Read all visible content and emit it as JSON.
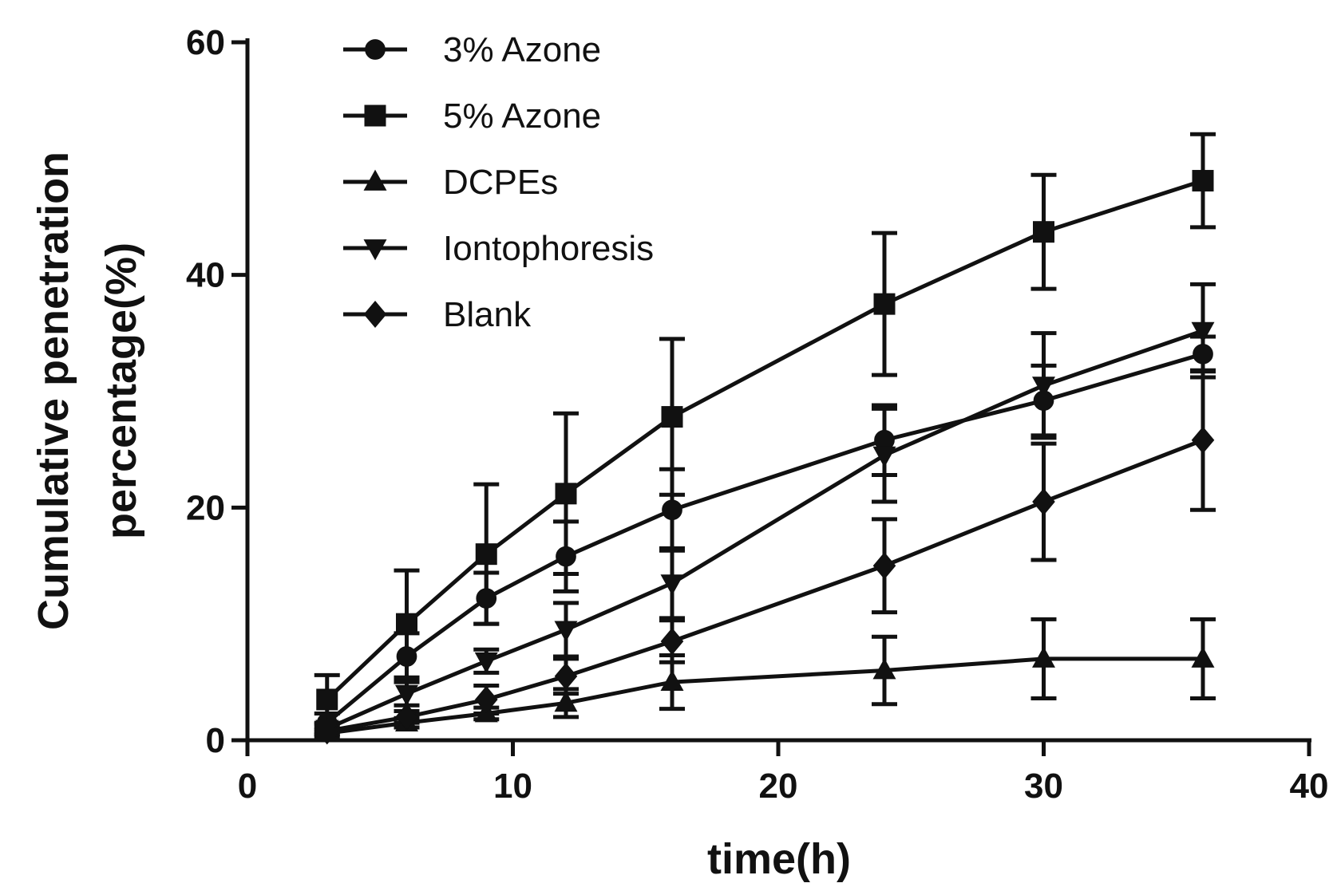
{
  "chart_data": {
    "type": "line",
    "title": "",
    "xlabel": "time(h)",
    "ylabel_lines": [
      "Cumulative penetration",
      "percentage(%)"
    ],
    "xlim": [
      0,
      40
    ],
    "ylim": [
      0,
      60
    ],
    "xticks": [
      0,
      10,
      20,
      30,
      40
    ],
    "yticks": [
      0,
      20,
      40,
      60
    ],
    "grid": false,
    "legend_position": "top-left",
    "x": [
      3,
      6,
      9,
      12,
      16,
      24,
      30,
      36
    ],
    "series": [
      {
        "name": "3% Azone",
        "marker": "circle",
        "values": [
          1.5,
          7.2,
          12.2,
          15.8,
          19.8,
          25.8,
          29.2,
          33.2
        ],
        "errors": [
          0.8,
          2.0,
          2.2,
          3.0,
          3.5,
          3.0,
          3.0,
          1.5
        ]
      },
      {
        "name": "5% Azone",
        "marker": "square",
        "values": [
          3.5,
          10.0,
          16.0,
          21.2,
          27.8,
          37.5,
          43.7,
          48.1
        ],
        "errors": [
          2.1,
          4.6,
          6.0,
          6.9,
          6.7,
          6.1,
          4.9,
          4.0
        ]
      },
      {
        "name": "DCPEs",
        "marker": "triangle-up",
        "values": [
          0.6,
          1.5,
          2.3,
          3.2,
          5.0,
          6.0,
          7.0,
          7.0
        ],
        "errors": [
          0.3,
          0.4,
          0.5,
          1.2,
          2.3,
          2.9,
          3.4,
          3.4
        ]
      },
      {
        "name": "Iontophoresis",
        "marker": "triangle-down",
        "values": [
          1.0,
          4.0,
          6.8,
          9.5,
          13.5,
          24.5,
          30.5,
          35.2
        ],
        "errors": [
          0.5,
          1.0,
          1.0,
          2.3,
          3.0,
          4.0,
          4.5,
          4.0
        ]
      },
      {
        "name": "Blank",
        "marker": "diamond",
        "values": [
          0.8,
          2.0,
          3.5,
          5.5,
          8.5,
          15.0,
          20.5,
          25.8
        ],
        "errors": [
          0.3,
          0.5,
          1.2,
          1.5,
          1.8,
          4.0,
          5.0,
          6.0
        ]
      }
    ]
  }
}
